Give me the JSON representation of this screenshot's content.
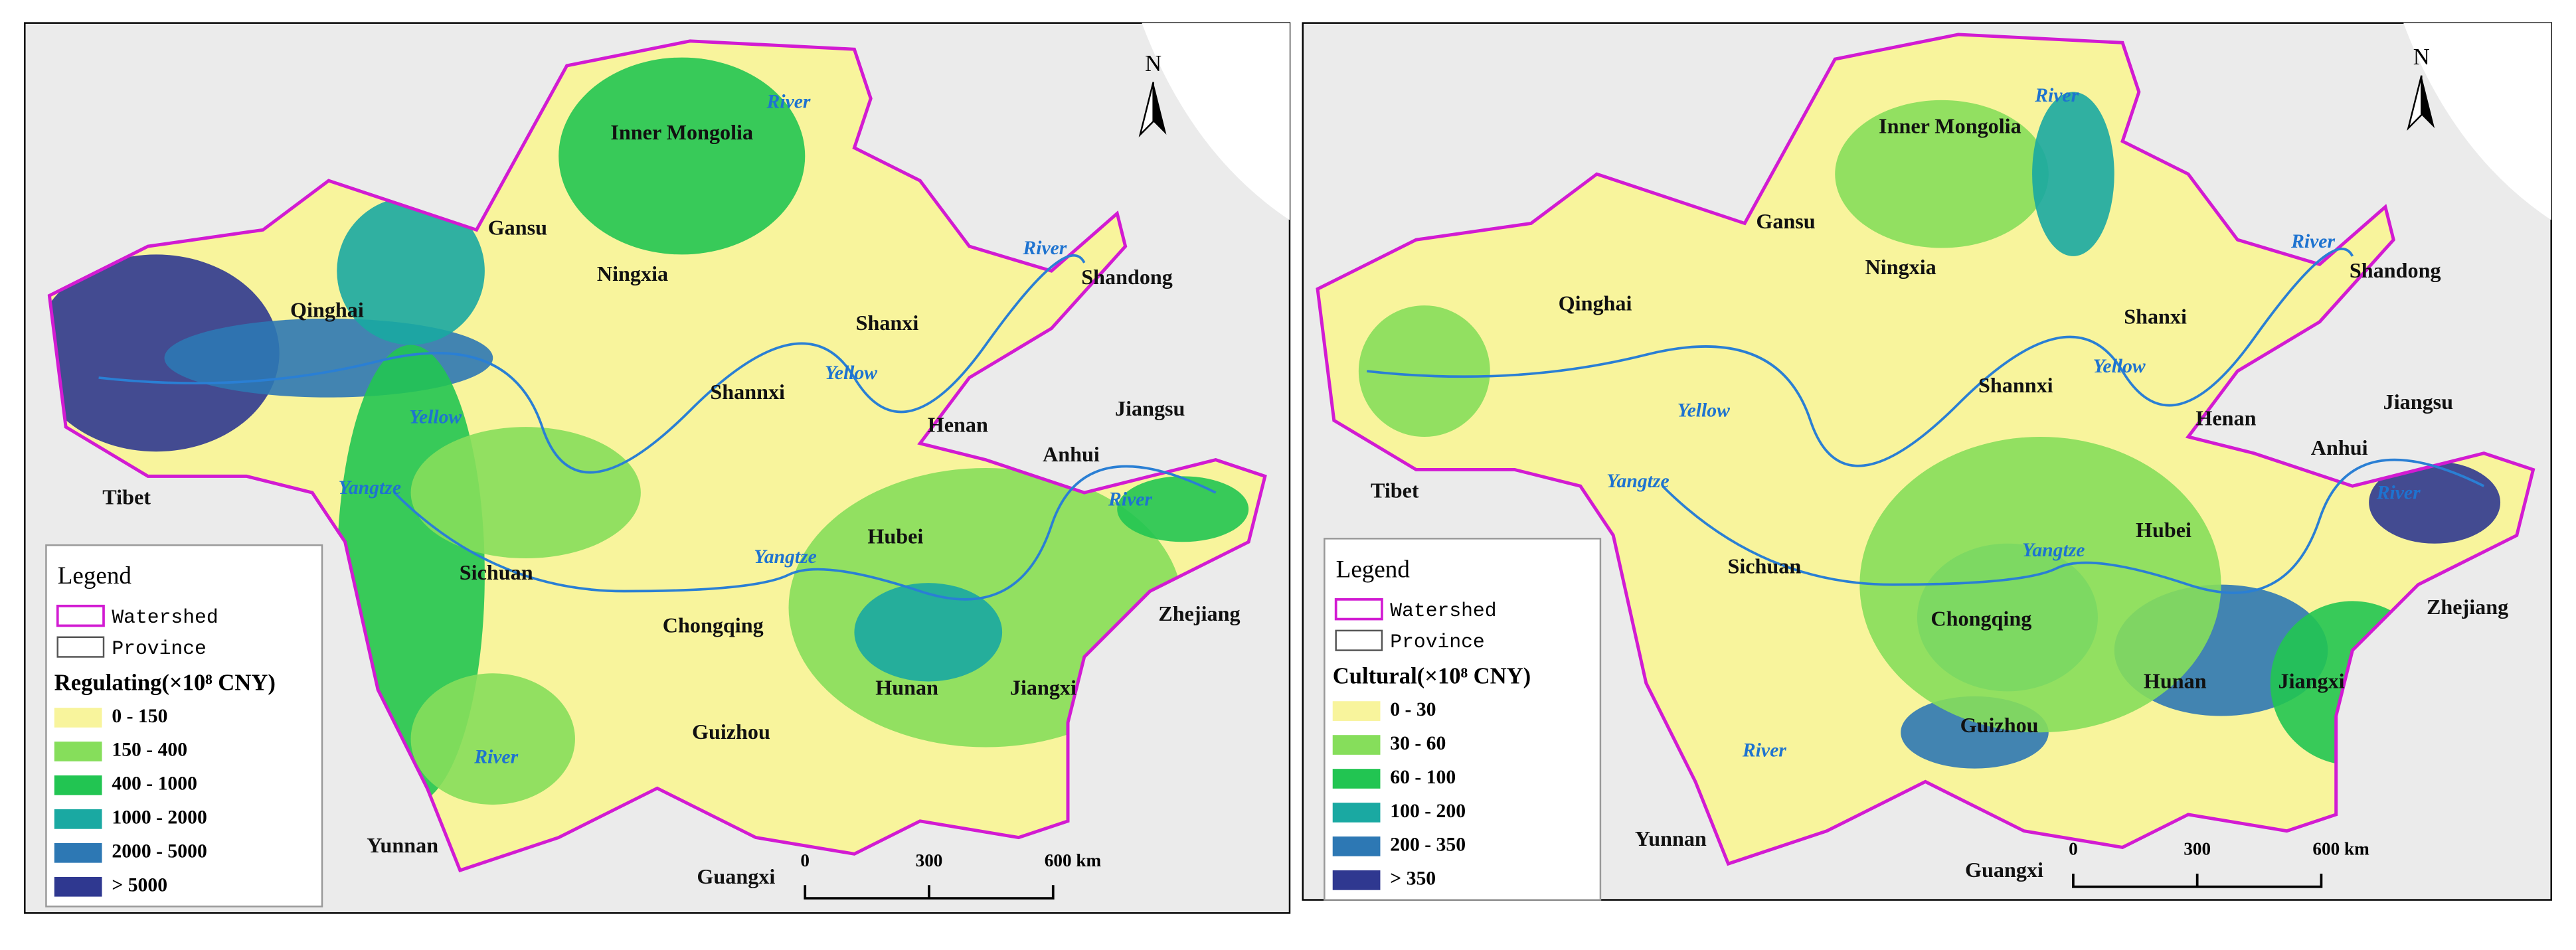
{
  "panels": [
    {
      "north": "N",
      "labels": [
        "Inner Mongolia",
        "River",
        "Gansu",
        "Ningxia",
        "Qinghai",
        "Shanxi",
        "Shandong",
        "River",
        "Shannxi",
        "Yellow",
        "Yellow",
        "Henan",
        "Jiangsu",
        "Anhui",
        "Tibet",
        "Yangtze",
        "River",
        "Hubei",
        "Yangtze",
        "Sichuan",
        "Chongqing",
        "Zhejiang",
        "Hunan",
        "Jiangxi",
        "Guizhou",
        "River",
        "Yunnan",
        "Guangxi"
      ],
      "scale": [
        "0",
        "300",
        "600 km"
      ],
      "legend": {
        "title": "Legend",
        "watershed": "Watershed",
        "province": "Province",
        "variable": "Regulating(×10⁸ CNY)",
        "classes": [
          {
            "label": "0 - 150",
            "color": "#f8f49c"
          },
          {
            "label": "150 - 400",
            "color": "#86de5b"
          },
          {
            "label": "400 - 1000",
            "color": "#22c552"
          },
          {
            "label": "1000 - 2000",
            "color": "#1aa9a2"
          },
          {
            "label": "2000 - 5000",
            "color": "#2d78b4"
          },
          {
            "label": "> 5000",
            "color": "#2f3890"
          }
        ]
      }
    },
    {
      "north": "N",
      "labels": [
        "Inner Mongolia",
        "River",
        "Gansu",
        "Ningxia",
        "Qinghai",
        "Shanxi",
        "Shandong",
        "River",
        "Shannxi",
        "Yellow",
        "Yellow",
        "Henan",
        "Jiangsu",
        "Anhui",
        "Tibet",
        "Yangtze",
        "River",
        "Hubei",
        "Yangtze",
        "Sichuan",
        "Chongqing",
        "Zhejiang",
        "Hunan",
        "Jiangxi",
        "Guizhou",
        "River",
        "Yunnan",
        "Guangxi"
      ],
      "scale": [
        "0",
        "300",
        "600 km"
      ],
      "legend": {
        "title": "Legend",
        "watershed": "Watershed",
        "province": "Province",
        "variable": "Cultural(×10⁸ CNY)",
        "classes": [
          {
            "label": "0 - 30",
            "color": "#f8f49c"
          },
          {
            "label": "30 - 60",
            "color": "#86de5b"
          },
          {
            "label": "60 - 100",
            "color": "#22c552"
          },
          {
            "label": "100 - 200",
            "color": "#1aa9a2"
          },
          {
            "label": "200 - 350",
            "color": "#2d78b4"
          },
          {
            "label": "> 350",
            "color": "#2f3890"
          }
        ]
      }
    }
  ]
}
